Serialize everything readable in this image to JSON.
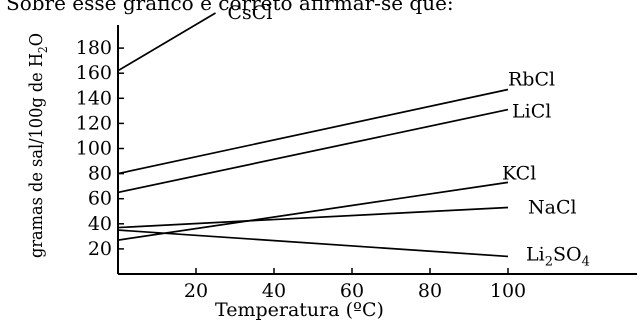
{
  "header_text": "Sobre esse gráfico é correto afirmar-se que:",
  "chart_data": {
    "type": "line",
    "title": "",
    "xlabel": "Temperatura (ºC)",
    "ylabel": "gramas de sal/100g de H2O",
    "ylabel_parts": {
      "main": "gramas de sal/100g de H",
      "sub": "2",
      "end": "O"
    },
    "xlim": [
      0,
      120
    ],
    "ylim": [
      0,
      200
    ],
    "xticks": [
      20,
      40,
      60,
      80,
      100
    ],
    "xtick_labels": [
      "20",
      "40",
      "60",
      "80",
      "100"
    ],
    "yticks": [
      20,
      40,
      60,
      80,
      100,
      120,
      140,
      160,
      180
    ],
    "ytick_labels": [
      "20",
      "40",
      "60",
      "80",
      "100",
      "120",
      "140",
      "160",
      "180"
    ],
    "grid": false,
    "series": [
      {
        "name": "CsCl",
        "label_parts": [
          "CsCl"
        ],
        "x": [
          0,
          25
        ],
        "y": [
          162,
          208
        ]
      },
      {
        "name": "RbCl",
        "label_parts": [
          "RbCl"
        ],
        "x": [
          0,
          100
        ],
        "y": [
          80,
          147
        ]
      },
      {
        "name": "LiCl",
        "label_parts": [
          "LiCl"
        ],
        "x": [
          0,
          100
        ],
        "y": [
          65,
          131
        ]
      },
      {
        "name": "KCl",
        "label_parts": [
          "KCl"
        ],
        "x": [
          0,
          100
        ],
        "y": [
          27,
          73
        ]
      },
      {
        "name": "NaCl",
        "label_parts": [
          "NaCl"
        ],
        "x": [
          0,
          100
        ],
        "y": [
          37,
          53
        ]
      },
      {
        "name": "Li2SO4",
        "label_parts": [
          "Li",
          "2",
          "SO",
          "4"
        ],
        "x": [
          0,
          100
        ],
        "y": [
          35,
          14
        ]
      }
    ]
  }
}
